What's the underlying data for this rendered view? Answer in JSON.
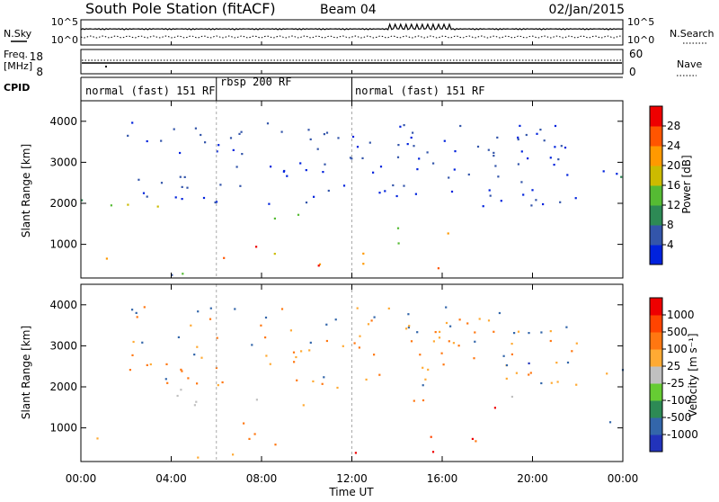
{
  "header": {
    "title": "South Pole Station (fitACF)",
    "beam": "Beam 04",
    "date": "02/Jan/2015"
  },
  "strips": {
    "nsky_label": "N.Sky",
    "nsky_ticks": [
      "10^5",
      "10^0"
    ],
    "nsearch_label": "N.Search",
    "nsearch_ticks": [
      "10^5",
      "10^0"
    ],
    "freq_label_1": "Freq.",
    "freq_label_2": "[MHz]",
    "freq_ticks": [
      "18",
      "8"
    ],
    "nave_label": "Nave",
    "nave_ticks": [
      "60",
      "0"
    ],
    "cpid_label": "CPID"
  },
  "cpid_segments": [
    {
      "label": "normal (fast) 151 RF",
      "start": 0,
      "end": 6
    },
    {
      "label": "rbsp 200 RF",
      "start": 6,
      "end": 12
    },
    {
      "label": "normal (fast) 151 RF",
      "start": 12,
      "end": 24
    }
  ],
  "colors": {
    "power": [
      "#0022dd",
      "#3355aa",
      "#2d8a55",
      "#55bb33",
      "#ccbb00",
      "#ff9900",
      "#ff5500",
      "#ee0000"
    ],
    "velocity": [
      "#2233bb",
      "#3366aa",
      "#2d8a55",
      "#66cc33",
      "#c0c0c0",
      "#ffaa33",
      "#ff7711",
      "#ff4400",
      "#ee0000"
    ]
  },
  "chart_data": [
    {
      "type": "heatmap",
      "panel": "power",
      "x_ticks": [
        "00:00",
        "04:00",
        "08:00",
        "12:00",
        "16:00",
        "20:00",
        "00:00"
      ],
      "xlim_hours": [
        0,
        24
      ],
      "ylabel": "Slant Range [km]",
      "y_ticks": [
        "1000",
        "2000",
        "3000",
        "4000"
      ],
      "ylim": [
        180,
        4500
      ],
      "colorbar_label": "Power [dB]",
      "colorbar_ticks": [
        "4",
        "8",
        "12",
        "16",
        "20",
        "24",
        "28"
      ],
      "colorbar_range": [
        0,
        30
      ]
    },
    {
      "type": "heatmap",
      "panel": "velocity",
      "x_ticks": [
        "00:00",
        "04:00",
        "08:00",
        "12:00",
        "16:00",
        "20:00",
        "00:00"
      ],
      "xlim_hours": [
        0,
        24
      ],
      "xlabel": "Time UT",
      "ylabel": "Slant Range [km]",
      "y_ticks": [
        "1000",
        "2000",
        "3000",
        "4000"
      ],
      "ylim": [
        180,
        4500
      ],
      "colorbar_label": "Velocity [m s⁻¹]",
      "colorbar_ticks": [
        "1000",
        "500",
        "100",
        "25",
        "-25",
        "-100",
        "-500",
        "-1000"
      ]
    }
  ]
}
